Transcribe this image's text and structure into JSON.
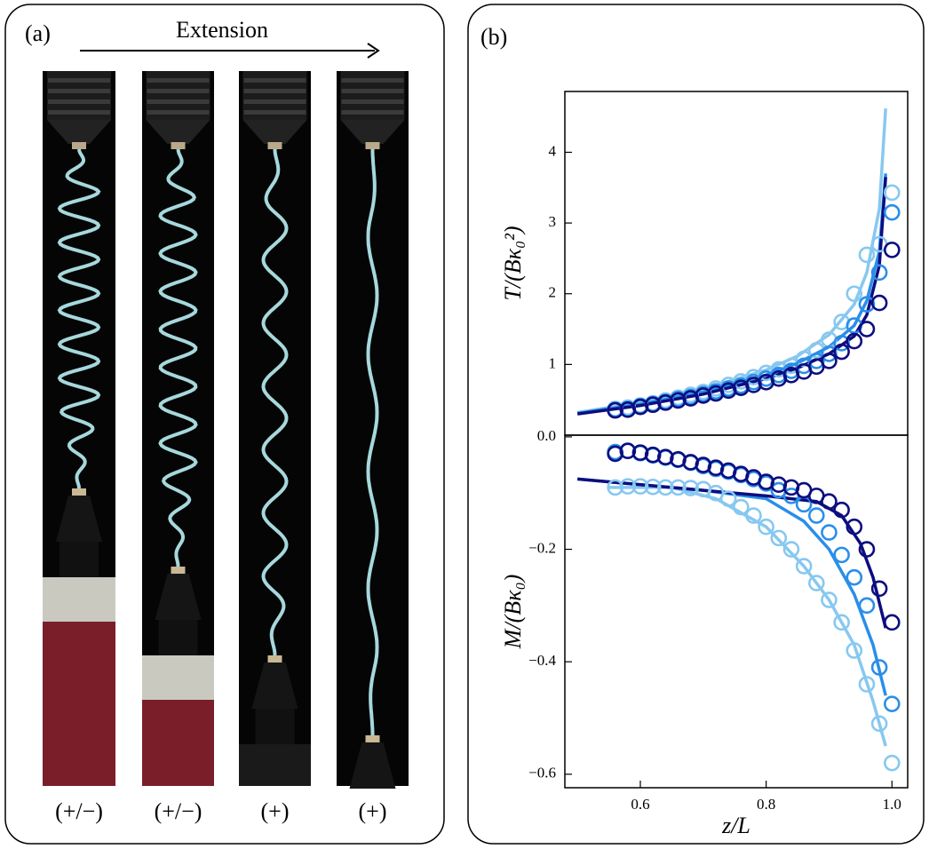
{
  "panel_a": {
    "label": "(a)",
    "arrow_label": "Extension",
    "photo_labels": [
      "(+/−)",
      "(+/−)",
      "(+)",
      "(+)"
    ]
  },
  "panel_b": {
    "label": "(b)"
  },
  "chart_data": [
    {
      "type": "line",
      "ylabel": "T/(Bκ₀²)",
      "xlim": [
        0.48,
        1.025
      ],
      "ylim": [
        0,
        4.86
      ],
      "yticks": [
        1,
        2,
        3,
        4
      ],
      "x": [
        0.56,
        0.58,
        0.6,
        0.62,
        0.64,
        0.66,
        0.68,
        0.7,
        0.72,
        0.74,
        0.76,
        0.78,
        0.8,
        0.82,
        0.84,
        0.86,
        0.88,
        0.9,
        0.92,
        0.94,
        0.96,
        0.98,
        1.0
      ],
      "series": [
        {
          "color": "#87c8f0",
          "values": [
            0.37,
            0.39,
            0.42,
            0.45,
            0.49,
            0.53,
            0.57,
            0.61,
            0.66,
            0.71,
            0.76,
            0.82,
            0.88,
            0.93,
            0.98,
            1.08,
            1.2,
            1.35,
            1.6,
            2.0,
            2.55,
            2.7,
            3.43
          ],
          "fit_x": [
            0.5,
            0.6,
            0.7,
            0.8,
            0.85,
            0.9,
            0.94,
            0.96,
            0.98,
            0.99
          ],
          "fit_values": [
            0.32,
            0.46,
            0.65,
            0.92,
            1.12,
            1.42,
            1.85,
            2.3,
            3.2,
            4.62
          ]
        },
        {
          "color": "#2a8ee8",
          "values": [
            0.36,
            0.37,
            0.41,
            0.44,
            0.47,
            0.51,
            0.54,
            0.58,
            0.62,
            0.66,
            0.7,
            0.75,
            0.8,
            0.85,
            0.91,
            0.98,
            1.05,
            1.15,
            1.3,
            1.55,
            1.85,
            2.3,
            3.15
          ],
          "fit_x": [
            0.5,
            0.6,
            0.7,
            0.8,
            0.85,
            0.9,
            0.94,
            0.96,
            0.98,
            0.99
          ],
          "fit_values": [
            0.31,
            0.44,
            0.61,
            0.85,
            1.02,
            1.25,
            1.55,
            1.9,
            2.6,
            3.7
          ]
        },
        {
          "color": "#0d0d80",
          "values": [
            0.35,
            0.36,
            0.4,
            0.43,
            0.46,
            0.49,
            0.52,
            0.56,
            0.59,
            0.63,
            0.67,
            0.71,
            0.75,
            0.8,
            0.85,
            0.9,
            0.97,
            1.05,
            1.18,
            1.33,
            1.5,
            1.87,
            2.62
          ],
          "fit_x": [
            0.5,
            0.6,
            0.7,
            0.8,
            0.85,
            0.9,
            0.94,
            0.96,
            0.98,
            0.99
          ],
          "fit_values": [
            0.3,
            0.42,
            0.58,
            0.8,
            0.95,
            1.15,
            1.4,
            1.7,
            2.4,
            3.65
          ]
        }
      ]
    },
    {
      "type": "line",
      "ylabel": "M/(Bκ₀)",
      "xlabel": "z/L",
      "xlim": [
        0.48,
        1.025
      ],
      "ylim": [
        -0.624,
        0.003
      ],
      "xticks": [
        0.6,
        0.8,
        {
          "value": 1,
          "label": "1.0"
        }
      ],
      "yticks": [
        {
          "value": 0,
          "label": "0.0"
        },
        {
          "value": -0.2,
          "label": "−0.2"
        },
        {
          "value": -0.4,
          "label": "−0.4"
        },
        {
          "value": -0.6,
          "label": "−0.6"
        }
      ],
      "x": [
        0.56,
        0.58,
        0.6,
        0.62,
        0.64,
        0.66,
        0.68,
        0.7,
        0.72,
        0.74,
        0.76,
        0.78,
        0.8,
        0.82,
        0.84,
        0.86,
        0.88,
        0.9,
        0.92,
        0.94,
        0.96,
        0.98,
        1.0
      ],
      "series": [
        {
          "color": "#87c8f0",
          "values": [
            -0.09,
            -0.088,
            -0.088,
            -0.089,
            -0.09,
            -0.09,
            -0.091,
            -0.093,
            -0.1,
            -0.11,
            -0.125,
            -0.14,
            -0.16,
            -0.18,
            -0.2,
            -0.23,
            -0.26,
            -0.29,
            -0.33,
            -0.38,
            -0.44,
            -0.51,
            -0.58
          ],
          "fit_x": [
            0.55,
            0.65,
            0.72,
            0.8,
            0.86,
            0.9,
            0.94,
            0.97,
            0.99
          ],
          "fit_values": [
            -0.09,
            -0.09,
            -0.11,
            -0.16,
            -0.23,
            -0.29,
            -0.37,
            -0.47,
            -0.55
          ]
        },
        {
          "color": "#2a8ee8",
          "values": [
            -0.027,
            -0.025,
            -0.029,
            -0.033,
            -0.037,
            -0.041,
            -0.046,
            -0.052,
            -0.057,
            -0.062,
            -0.068,
            -0.075,
            -0.083,
            -0.095,
            -0.105,
            -0.12,
            -0.14,
            -0.17,
            -0.21,
            -0.25,
            -0.3,
            -0.41,
            -0.475
          ],
          "fit_x": [
            0.5,
            0.7,
            0.8,
            0.86,
            0.9,
            0.94,
            0.97,
            0.99
          ],
          "fit_values": [
            -0.075,
            -0.095,
            -0.11,
            -0.15,
            -0.2,
            -0.28,
            -0.37,
            -0.46
          ]
        },
        {
          "color": "#0d0d80",
          "values": [
            -0.03,
            -0.025,
            -0.028,
            -0.032,
            -0.036,
            -0.04,
            -0.045,
            -0.05,
            -0.055,
            -0.06,
            -0.066,
            -0.072,
            -0.08,
            -0.085,
            -0.09,
            -0.095,
            -0.105,
            -0.115,
            -0.13,
            -0.16,
            -0.2,
            -0.27,
            -0.33
          ],
          "fit_x": [
            0.5,
            0.6,
            0.7,
            0.8,
            0.88,
            0.92,
            0.95,
            0.97,
            0.99
          ],
          "fit_values": [
            -0.075,
            -0.085,
            -0.095,
            -0.105,
            -0.115,
            -0.14,
            -0.19,
            -0.25,
            -0.34
          ]
        }
      ]
    }
  ]
}
